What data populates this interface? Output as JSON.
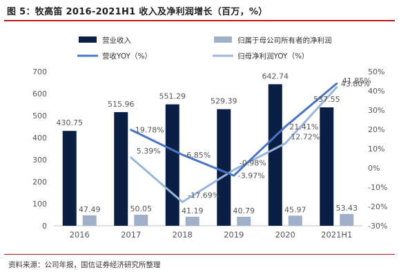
{
  "figure_title": "图 5：牧高笛 2016-2021H1 收入及净利润增长（百万，%）",
  "source_note": "资料来源：公司年报，国信证券经济研究所整理",
  "colors": {
    "revenue_bar": "#0b1f45",
    "net_profit_bar": "#9fb0c8",
    "revenue_yoy_line": "#4a74c4",
    "net_profit_yoy_line": "#98b6dc",
    "rule": "#b5121b",
    "axis_text": "#555555"
  },
  "chart_data": {
    "type": "bar",
    "categories": [
      "2016",
      "2017",
      "2018",
      "2019",
      "2020",
      "2021H1"
    ],
    "series": [
      {
        "name": "营业收入",
        "kind": "bar",
        "axis": "left",
        "values": [
          430.75,
          515.96,
          551.29,
          529.39,
          642.74,
          537.55
        ],
        "labels": [
          "430.75",
          "515.96",
          "551.29",
          "529.39",
          "642.74",
          "537.55"
        ]
      },
      {
        "name": "归属于母公司所有者的净利润",
        "kind": "bar",
        "axis": "left",
        "values": [
          47.49,
          50.05,
          41.19,
          40.79,
          45.97,
          53.43
        ],
        "labels": [
          "47.49",
          "50.05",
          "41.19",
          "40.79",
          "45.97",
          "53.43"
        ]
      },
      {
        "name": "营收YOY（%）",
        "kind": "line",
        "axis": "right",
        "values": [
          null,
          19.78,
          6.85,
          -3.97,
          21.41,
          43.8
        ],
        "labels": [
          null,
          "19.78%",
          "6.85%",
          "-3.97%",
          "21.41%",
          "43.80%"
        ]
      },
      {
        "name": "归母净利润YOY（%）",
        "kind": "line",
        "axis": "right",
        "values": [
          null,
          5.39,
          -17.69,
          -0.98,
          12.72,
          41.85
        ],
        "labels": [
          null,
          "5.39%",
          "-17.69%",
          "-0.98%",
          "12.72%",
          "41.85%"
        ]
      }
    ],
    "left_axis": {
      "min": 0,
      "max": 700,
      "step": 100,
      "ticks": [
        "0",
        "100",
        "200",
        "300",
        "400",
        "500",
        "600",
        "700"
      ]
    },
    "right_axis": {
      "min": -30,
      "max": 50,
      "step": 10,
      "ticks": [
        "-30%",
        "-20%",
        "-10%",
        "0%",
        "10%",
        "20%",
        "30%",
        "40%",
        "50%"
      ]
    },
    "legend_position": "top",
    "grid": false
  }
}
